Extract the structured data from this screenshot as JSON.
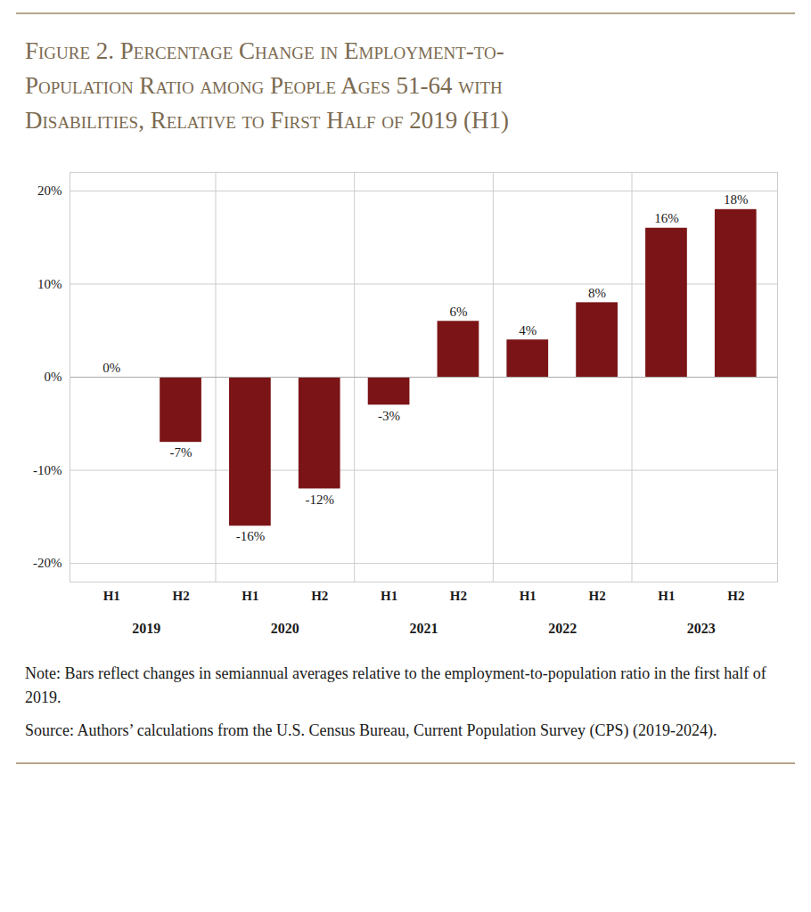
{
  "chart_data": {
    "type": "bar",
    "title": "Figure 2. Percentage Change in Employment-to-\nPopulation Ratio among People Ages 51-64 with\nDisabilities, Relative to First Half of 2019 (H1)",
    "categories": [
      "H1",
      "H2",
      "H1",
      "H2",
      "H1",
      "H2",
      "H1",
      "H2",
      "H1",
      "H2"
    ],
    "groups": [
      "2019",
      "2019",
      "2020",
      "2020",
      "2021",
      "2021",
      "2022",
      "2022",
      "2023",
      "2023"
    ],
    "values": [
      0,
      -7,
      -16,
      -12,
      -3,
      6,
      4,
      8,
      16,
      18
    ],
    "value_labels": [
      "0%",
      "-7%",
      "-16%",
      "-12%",
      "-3%",
      "6%",
      "4%",
      "8%",
      "16%",
      "18%"
    ],
    "data_labels": true,
    "color": "#7B1416",
    "ylim": [
      -22,
      22
    ],
    "yticks": [
      {
        "value": -20,
        "label": "-20%"
      },
      {
        "value": -10,
        "label": "-10%"
      },
      {
        "value": 0,
        "label": "0%"
      },
      {
        "value": 10,
        "label": "10%"
      },
      {
        "value": 20,
        "label": "20%"
      }
    ],
    "grid": true,
    "note": "Note: Bars reflect changes in semiannual averages relative to the employment-to-population ratio in the first half of 2019.",
    "source": "Source: Authors’ calculations from the U.S. Census Bureau, Current Population Survey (CPS) (2019-2024)."
  }
}
